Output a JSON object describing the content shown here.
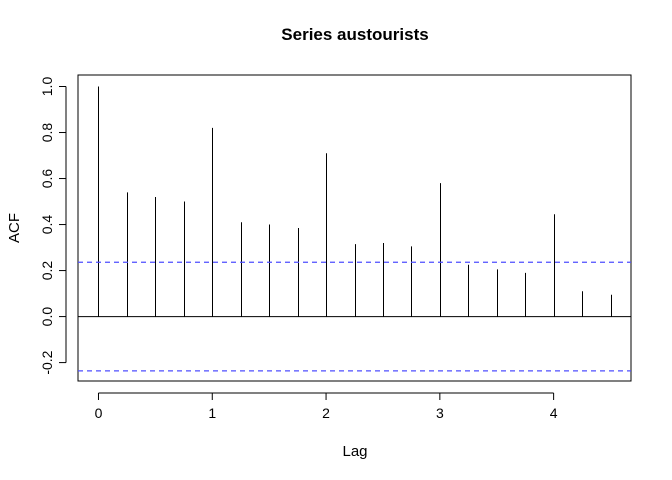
{
  "chart_data": {
    "type": "bar",
    "title": "Series  austourists",
    "xlabel": "Lag",
    "ylabel": "ACF",
    "x": [
      0,
      0.25,
      0.5,
      0.75,
      1,
      1.25,
      1.5,
      1.75,
      2,
      2.25,
      2.5,
      2.75,
      3,
      3.25,
      3.5,
      3.75,
      4,
      4.25,
      4.5
    ],
    "values": [
      1.0,
      0.54,
      0.52,
      0.5,
      0.82,
      0.41,
      0.4,
      0.385,
      0.71,
      0.315,
      0.32,
      0.305,
      0.58,
      0.225,
      0.205,
      0.19,
      0.445,
      0.11,
      0.095
    ],
    "confidence_bounds": [
      0.236,
      -0.236
    ],
    "xlim": [
      -0.18,
      4.68
    ],
    "ylim": [
      -0.28,
      1.05
    ],
    "xticks": [
      0,
      1,
      2,
      3,
      4
    ],
    "yticks": [
      -0.2,
      0.0,
      0.2,
      0.4,
      0.6,
      0.8,
      1.0
    ],
    "xtick_labels": [
      "0",
      "1",
      "2",
      "3",
      "4"
    ],
    "ytick_labels": [
      "-0.2",
      "0.0",
      "0.2",
      "0.4",
      "0.6",
      "0.8",
      "1.0"
    ],
    "grid": false,
    "bar_color": "#000000",
    "bound_color": "#4f4fff"
  }
}
